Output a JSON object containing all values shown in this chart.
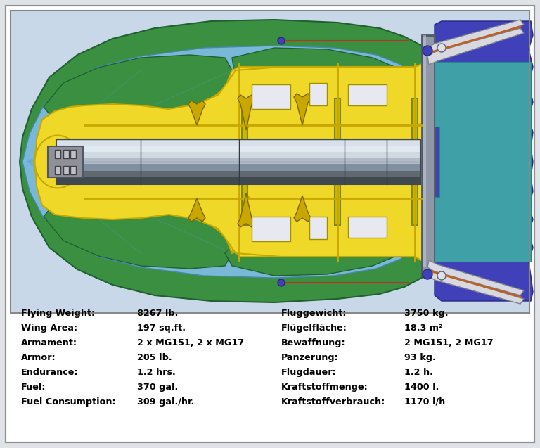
{
  "bg_color": "#e0e4e8",
  "stats_left": [
    [
      "Flying Weight:",
      "8267 lb."
    ],
    [
      "Wing Area:",
      "197 sq.ft."
    ],
    [
      "Armament:",
      "2 x MG151, 2 x MG17"
    ],
    [
      "Armor:",
      "205 lb."
    ],
    [
      "Endurance:",
      "1.2 hrs."
    ],
    [
      "Fuel:",
      "370 gal."
    ],
    [
      "Fuel Consumption:",
      "309 gal./hr."
    ]
  ],
  "stats_right": [
    [
      "Fluggewicht:",
      "3750 kg."
    ],
    [
      "Flügelfläche:",
      "18.3 m²"
    ],
    [
      "Bewaffnung:",
      "2 MG151, 2 MG17"
    ],
    [
      "Panzerung:",
      "93 kg."
    ],
    [
      "Flugdauer:",
      "1.2 h."
    ],
    [
      "Kraftstoffmenge:",
      "1400 l."
    ],
    [
      "Kraftstoffverbrauch:",
      "1170 l/h"
    ]
  ],
  "colors": {
    "outer_green": "#3a9040",
    "inner_blue": "#7ab8d8",
    "engine_yellow": "#f0d828",
    "engine_yellow_edge": "#c8a800",
    "shaft_light": "#d0d8e8",
    "shaft_mid": "#a8b4c4",
    "shaft_dark": "#606878",
    "shaft_darkest": "#303840",
    "firewall_gray": "#9098a8",
    "tail_purple": "#4040b8",
    "tail_teal": "#40a0a8",
    "tube_white": "#d8d8e0",
    "purple_dot": "#5050c0",
    "red_wire": "#c03020",
    "blue_bg": "#c8d8e8"
  }
}
